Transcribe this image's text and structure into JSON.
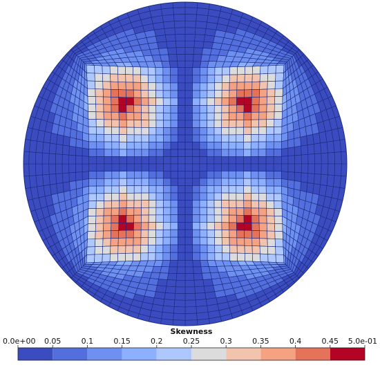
{
  "colorbar": {
    "title": "Skewness",
    "ticks": [
      {
        "value": 0.0,
        "label": "0.0e+00"
      },
      {
        "value": 0.05,
        "label": "0.05"
      },
      {
        "value": 0.1,
        "label": "0.1"
      },
      {
        "value": 0.15,
        "label": "0.15"
      },
      {
        "value": 0.2,
        "label": "0.2"
      },
      {
        "value": 0.25,
        "label": "0.25"
      },
      {
        "value": 0.3,
        "label": "0.3"
      },
      {
        "value": 0.35,
        "label": "0.35"
      },
      {
        "value": 0.4,
        "label": "0.4"
      },
      {
        "value": 0.45,
        "label": "0.45"
      },
      {
        "value": 0.5,
        "label": "5.0e-01"
      }
    ],
    "range": [
      0.0,
      0.5
    ],
    "bands": [
      {
        "from": 0.0,
        "to": 0.05,
        "color": "#3b4cc0"
      },
      {
        "from": 0.05,
        "to": 0.1,
        "color": "#536edd"
      },
      {
        "from": 0.1,
        "to": 0.15,
        "color": "#6e91f1"
      },
      {
        "from": 0.15,
        "to": 0.2,
        "color": "#8db0fe"
      },
      {
        "from": 0.2,
        "to": 0.25,
        "color": "#aec7fc"
      },
      {
        "from": 0.25,
        "to": 0.3,
        "color": "#dddcdc"
      },
      {
        "from": 0.3,
        "to": 0.35,
        "color": "#f3c4ad"
      },
      {
        "from": 0.35,
        "to": 0.4,
        "color": "#f4a282"
      },
      {
        "from": 0.4,
        "to": 0.45,
        "color": "#e4735a"
      },
      {
        "from": 0.45,
        "to": 0.5,
        "color": "#b40426"
      }
    ]
  },
  "mesh": {
    "mesh_line_color": "#1a2a7a",
    "high_skew_regions": [
      "top-left",
      "top-right",
      "bottom-left",
      "bottom-right"
    ]
  }
}
